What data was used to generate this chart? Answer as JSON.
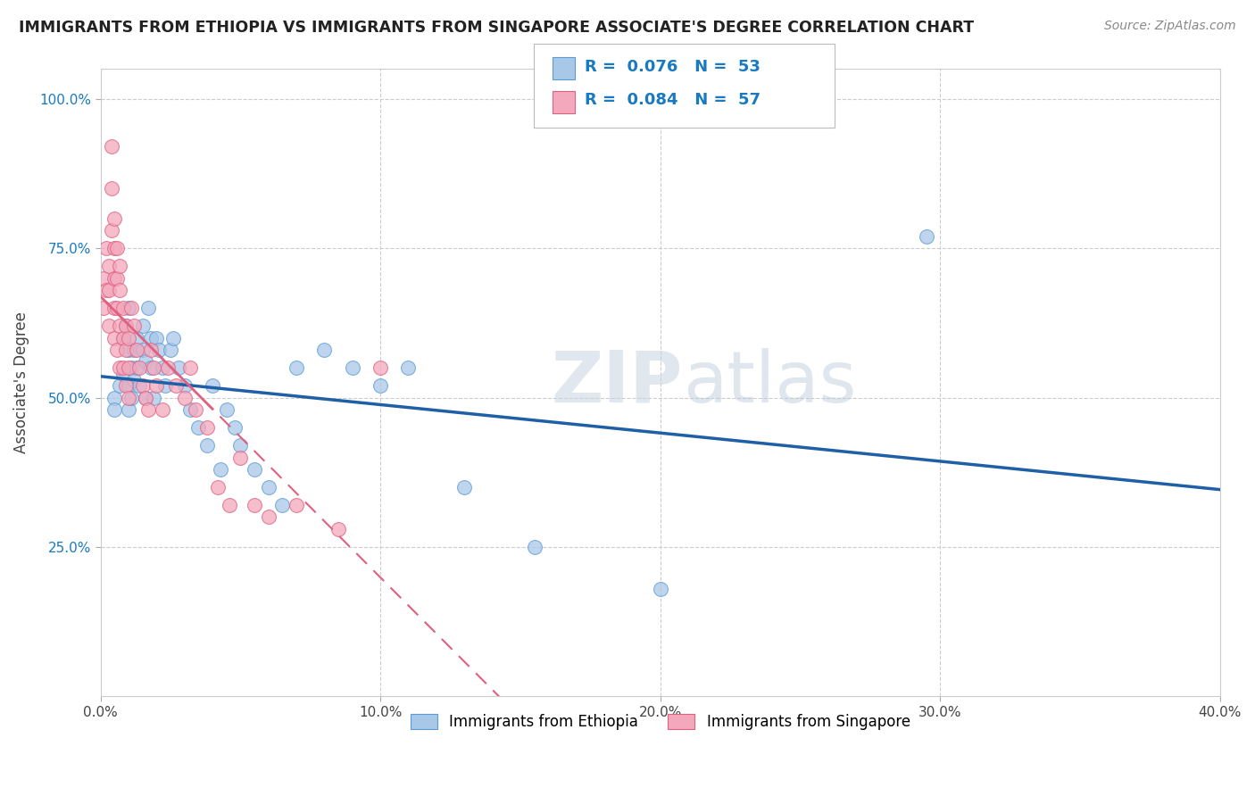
{
  "title": "IMMIGRANTS FROM ETHIOPIA VS IMMIGRANTS FROM SINGAPORE ASSOCIATE'S DEGREE CORRELATION CHART",
  "source": "Source: ZipAtlas.com",
  "ylabel": "Associate's Degree",
  "xlim": [
    0.0,
    0.4
  ],
  "ylim": [
    0.0,
    1.05
  ],
  "xtick_labels": [
    "0.0%",
    "10.0%",
    "20.0%",
    "30.0%",
    "40.0%"
  ],
  "xtick_vals": [
    0.0,
    0.1,
    0.2,
    0.3,
    0.4
  ],
  "ytick_labels": [
    "25.0%",
    "50.0%",
    "75.0%",
    "100.0%"
  ],
  "ytick_vals": [
    0.25,
    0.5,
    0.75,
    1.0
  ],
  "legend_r1": "0.076",
  "legend_n1": "53",
  "legend_r2": "0.084",
  "legend_n2": "57",
  "ethiopia_color": "#a8c8e8",
  "singapore_color": "#f4a8bc",
  "ethiopia_edge": "#5b9bd5",
  "singapore_edge": "#e06080",
  "ethiopia_line_color": "#1f5fa6",
  "singapore_line_color": "#e06080",
  "watermark": "ZIPatlas",
  "bottom_label1": "Immigrants from Ethiopia",
  "bottom_label2": "Immigrants from Singapore",
  "ethiopia_x": [
    0.005,
    0.005,
    0.007,
    0.008,
    0.008,
    0.009,
    0.01,
    0.01,
    0.01,
    0.01,
    0.011,
    0.011,
    0.012,
    0.012,
    0.013,
    0.013,
    0.014,
    0.015,
    0.015,
    0.016,
    0.016,
    0.017,
    0.018,
    0.018,
    0.019,
    0.02,
    0.021,
    0.022,
    0.023,
    0.025,
    0.026,
    0.028,
    0.03,
    0.032,
    0.035,
    0.038,
    0.04,
    0.043,
    0.045,
    0.048,
    0.05,
    0.055,
    0.06,
    0.065,
    0.07,
    0.08,
    0.09,
    0.1,
    0.11,
    0.13,
    0.155,
    0.2,
    0.295
  ],
  "ethiopia_y": [
    0.5,
    0.48,
    0.52,
    0.54,
    0.6,
    0.62,
    0.65,
    0.58,
    0.52,
    0.48,
    0.55,
    0.5,
    0.58,
    0.53,
    0.6,
    0.55,
    0.52,
    0.62,
    0.58,
    0.56,
    0.5,
    0.65,
    0.6,
    0.55,
    0.5,
    0.6,
    0.58,
    0.55,
    0.52,
    0.58,
    0.6,
    0.55,
    0.52,
    0.48,
    0.45,
    0.42,
    0.52,
    0.38,
    0.48,
    0.45,
    0.42,
    0.38,
    0.35,
    0.32,
    0.55,
    0.58,
    0.55,
    0.52,
    0.55,
    0.35,
    0.25,
    0.18,
    0.77
  ],
  "singapore_x": [
    0.001,
    0.001,
    0.002,
    0.002,
    0.003,
    0.003,
    0.003,
    0.004,
    0.004,
    0.004,
    0.005,
    0.005,
    0.005,
    0.005,
    0.005,
    0.006,
    0.006,
    0.006,
    0.006,
    0.007,
    0.007,
    0.007,
    0.007,
    0.008,
    0.008,
    0.008,
    0.009,
    0.009,
    0.009,
    0.01,
    0.01,
    0.01,
    0.011,
    0.012,
    0.013,
    0.014,
    0.015,
    0.016,
    0.017,
    0.018,
    0.019,
    0.02,
    0.022,
    0.024,
    0.027,
    0.03,
    0.032,
    0.034,
    0.038,
    0.042,
    0.046,
    0.05,
    0.055,
    0.06,
    0.07,
    0.085,
    0.1
  ],
  "singapore_y": [
    0.7,
    0.65,
    0.75,
    0.68,
    0.72,
    0.68,
    0.62,
    0.92,
    0.85,
    0.78,
    0.8,
    0.75,
    0.7,
    0.65,
    0.6,
    0.75,
    0.7,
    0.65,
    0.58,
    0.72,
    0.68,
    0.62,
    0.55,
    0.65,
    0.6,
    0.55,
    0.62,
    0.58,
    0.52,
    0.6,
    0.55,
    0.5,
    0.65,
    0.62,
    0.58,
    0.55,
    0.52,
    0.5,
    0.48,
    0.58,
    0.55,
    0.52,
    0.48,
    0.55,
    0.52,
    0.5,
    0.55,
    0.48,
    0.45,
    0.35,
    0.32,
    0.4,
    0.32,
    0.3,
    0.32,
    0.28,
    0.55
  ]
}
